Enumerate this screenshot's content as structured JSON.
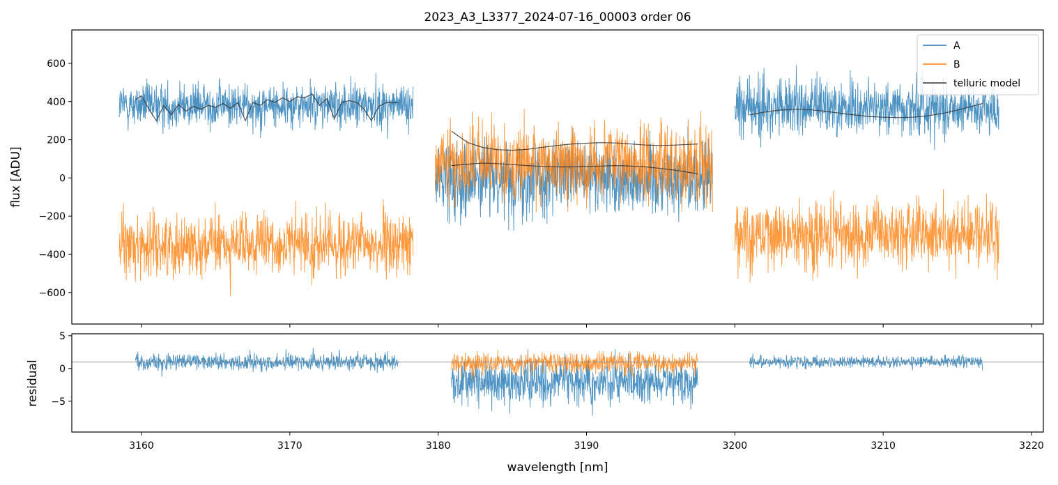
{
  "chart_data": {
    "type": "line",
    "title": "2023_A3_L3377_2024-07-16_00003  order 06",
    "xlabel": "wavelength [nm]",
    "colors": {
      "A": "#1f77b4",
      "B": "#ff7f0e",
      "model": "#333333",
      "zero_line": "#808080"
    },
    "legend": {
      "position": "top-right",
      "entries": [
        {
          "name": "A",
          "color": "#1f77b4"
        },
        {
          "name": "B",
          "color": "#ff7f0e"
        },
        {
          "name": "telluric model",
          "color": "#333333"
        }
      ]
    },
    "x_ticks": [
      3160,
      3170,
      3180,
      3190,
      3200,
      3210,
      3220
    ],
    "x_tick_labels": [
      "3160",
      "3170",
      "3180",
      "3190",
      "3200",
      "3210",
      "3220"
    ],
    "xlim": [
      3155.3,
      3220.8
    ],
    "top_panel": {
      "ylabel": "flux [ADU]",
      "ylim": [
        -765,
        775
      ],
      "y_ticks": [
        600,
        400,
        200,
        0,
        -200,
        -400,
        -600
      ],
      "y_tick_labels": [
        "600",
        "400",
        "200",
        "0",
        "−200",
        "−400",
        "−600"
      ],
      "segments": [
        {
          "x_range": [
            3158.5,
            3178.3
          ],
          "A": {
            "mean": 380,
            "noise": 115
          },
          "B": {
            "mean": -350,
            "noise": 160
          }
        },
        {
          "x_range": [
            3179.8,
            3198.5
          ],
          "A": {
            "mean": 0,
            "noise": 190
          },
          "B": {
            "mean": 80,
            "noise": 200
          }
        },
        {
          "x_range": [
            3200.0,
            3217.8
          ],
          "A": {
            "mean": 370,
            "noise": 150
          },
          "B": {
            "mean": -300,
            "noise": 175
          }
        }
      ],
      "model_curves": [
        {
          "name": "telluric model (A, seg 1)",
          "x": [
            3159.6,
            3160.0,
            3160.5,
            3161.0,
            3161.5,
            3162.0,
            3162.5,
            3163.0,
            3163.5,
            3164.0,
            3164.5,
            3165.0,
            3165.5,
            3166.0,
            3166.5,
            3167.0,
            3167.5,
            3168.0,
            3168.5,
            3169.0,
            3169.5,
            3170.0,
            3170.5,
            3171.0,
            3171.5,
            3172.0,
            3172.5,
            3173.0,
            3173.5,
            3174.0,
            3174.5,
            3175.0,
            3175.5,
            3176.0,
            3176.5,
            3177.3
          ],
          "y": [
            410,
            430,
            360,
            300,
            380,
            330,
            385,
            350,
            375,
            360,
            380,
            370,
            390,
            365,
            395,
            300,
            395,
            380,
            410,
            395,
            420,
            400,
            425,
            420,
            440,
            380,
            415,
            310,
            395,
            405,
            395,
            360,
            300,
            375,
            395,
            395
          ]
        },
        {
          "name": "telluric model (B, seg 2)",
          "x": [
            3180.9,
            3182.0,
            3183.0,
            3184.0,
            3185.0,
            3186.0,
            3187.0,
            3188.0,
            3189.0,
            3190.0,
            3191.0,
            3192.0,
            3193.0,
            3194.0,
            3195.0,
            3196.0,
            3197.5
          ],
          "y": [
            245,
            185,
            160,
            148,
            145,
            150,
            160,
            170,
            178,
            182,
            185,
            183,
            178,
            172,
            170,
            172,
            178
          ]
        },
        {
          "name": "telluric model (A, seg 2)",
          "x": [
            3180.9,
            3182.0,
            3183.0,
            3184.0,
            3185.0,
            3186.0,
            3187.0,
            3188.0,
            3189.0,
            3190.0,
            3191.0,
            3192.0,
            3193.0,
            3194.0,
            3195.0,
            3196.0,
            3197.5
          ],
          "y": [
            65,
            72,
            78,
            75,
            70,
            65,
            60,
            58,
            58,
            60,
            62,
            65,
            62,
            58,
            50,
            40,
            22
          ]
        },
        {
          "name": "telluric model (A, seg 3)",
          "x": [
            3201.0,
            3202.0,
            3203.0,
            3204.0,
            3205.0,
            3206.0,
            3207.0,
            3208.0,
            3209.0,
            3210.0,
            3211.0,
            3212.0,
            3213.0,
            3214.0,
            3215.0,
            3216.7
          ],
          "y": [
            330,
            345,
            355,
            360,
            358,
            350,
            340,
            330,
            322,
            318,
            316,
            318,
            325,
            338,
            355,
            390
          ]
        }
      ]
    },
    "bottom_panel": {
      "ylabel": "residual",
      "ylim": [
        -9.7,
        5.3
      ],
      "reference_line": 1,
      "y_ticks": [
        5,
        0,
        -5
      ],
      "y_tick_labels": [
        "5",
        "0",
        "−5"
      ],
      "segments": [
        {
          "x_range": [
            3159.6,
            3177.3
          ],
          "series": "A",
          "mean": 1,
          "noise": 1.3
        },
        {
          "x_range": [
            3180.9,
            3197.5
          ],
          "series": "A",
          "mean": -2,
          "noise": 3.2
        },
        {
          "x_range": [
            3180.9,
            3197.5
          ],
          "series": "B",
          "mean": 0.8,
          "noise": 1.6
        },
        {
          "x_range": [
            3201.0,
            3216.7
          ],
          "series": "A",
          "mean": 1,
          "noise": 0.9
        }
      ]
    }
  }
}
